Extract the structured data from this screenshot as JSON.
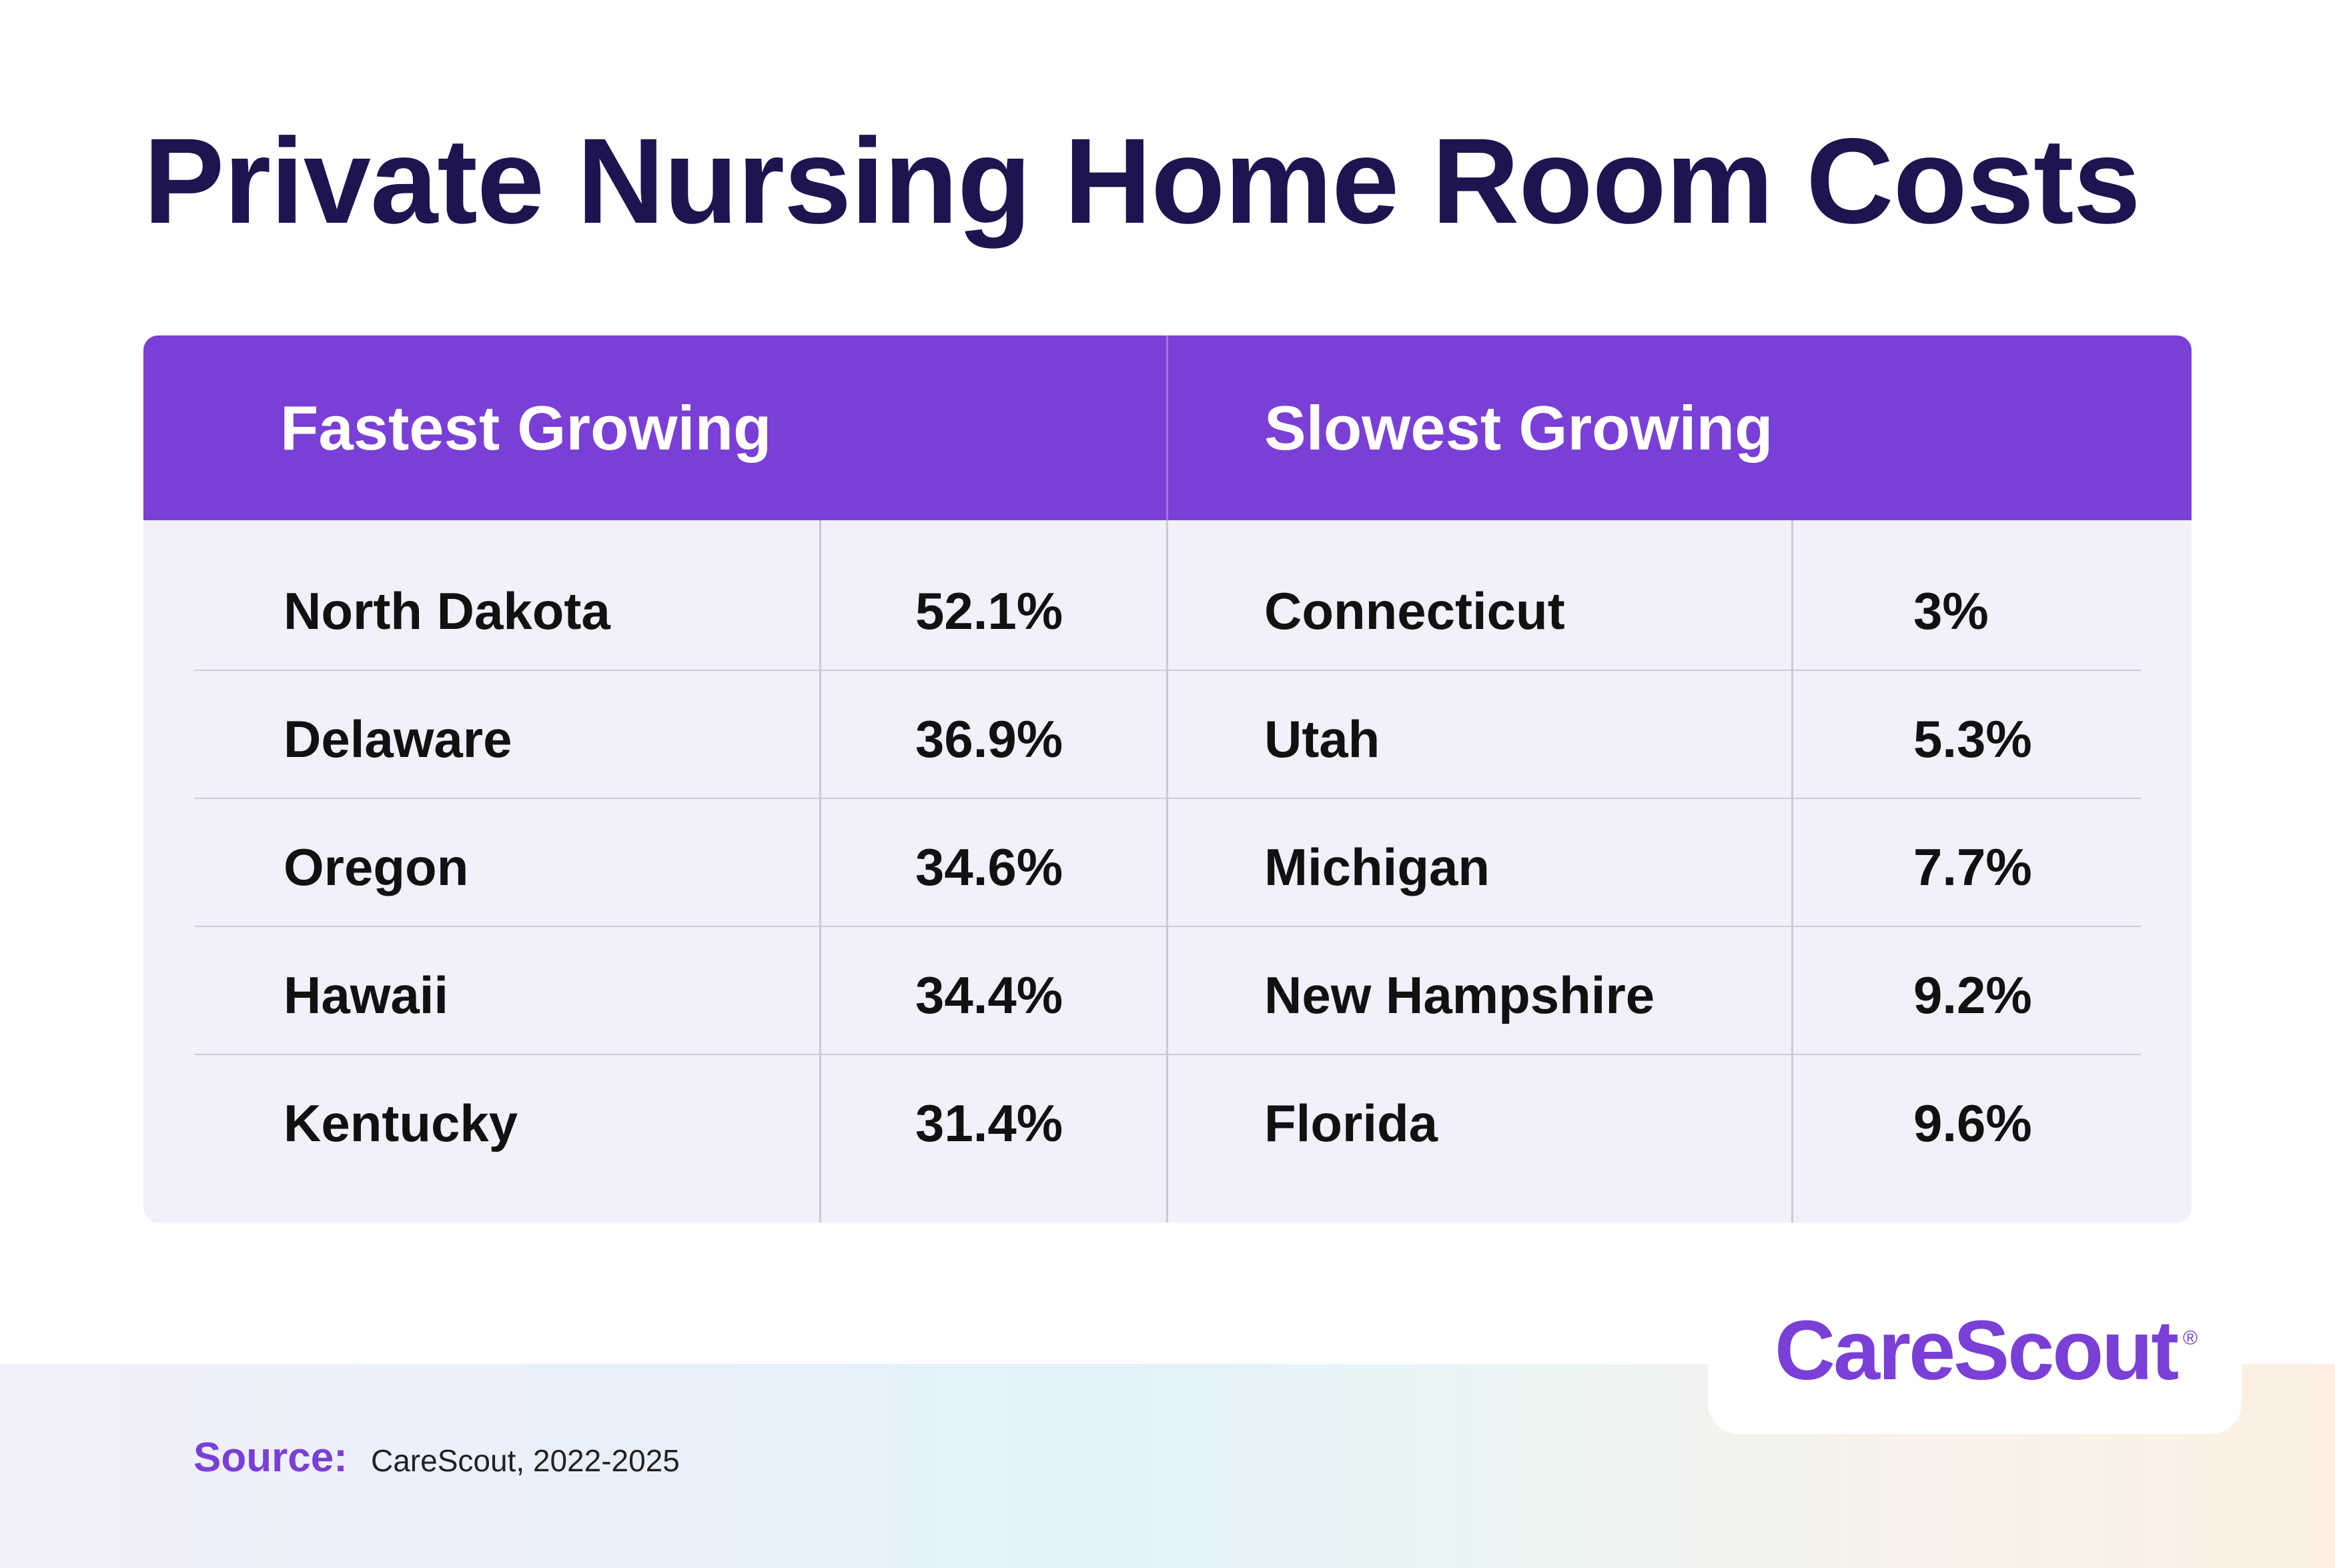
{
  "title": "Private Nursing Home Room Costs",
  "chart_data": {
    "type": "table",
    "groups": [
      {
        "title": "Fastest Growing",
        "rows": [
          {
            "state": "North Dakota",
            "value": "52.1%"
          },
          {
            "state": "Delaware",
            "value": "36.9%"
          },
          {
            "state": "Oregon",
            "value": "34.6%"
          },
          {
            "state": "Hawaii",
            "value": "34.4%"
          },
          {
            "state": "Kentucky",
            "value": "31.4%"
          }
        ]
      },
      {
        "title": "Slowest Growing",
        "rows": [
          {
            "state": "Connecticut",
            "value": "3%"
          },
          {
            "state": "Utah",
            "value": "5.3%"
          },
          {
            "state": "Michigan",
            "value": "7.7%"
          },
          {
            "state": "New Hampshire",
            "value": "9.2%"
          },
          {
            "state": "Florida",
            "value": "9.6%"
          }
        ]
      }
    ]
  },
  "logo": {
    "name": "CareScout",
    "registered_mark": "®"
  },
  "source": {
    "label": "Source:",
    "text": "CareScout, 2022-2025"
  },
  "colors": {
    "title": "#1d1450",
    "header": "#7a3fd6",
    "table_body": "#f2f0fa",
    "brand": "#7a3fd6"
  }
}
